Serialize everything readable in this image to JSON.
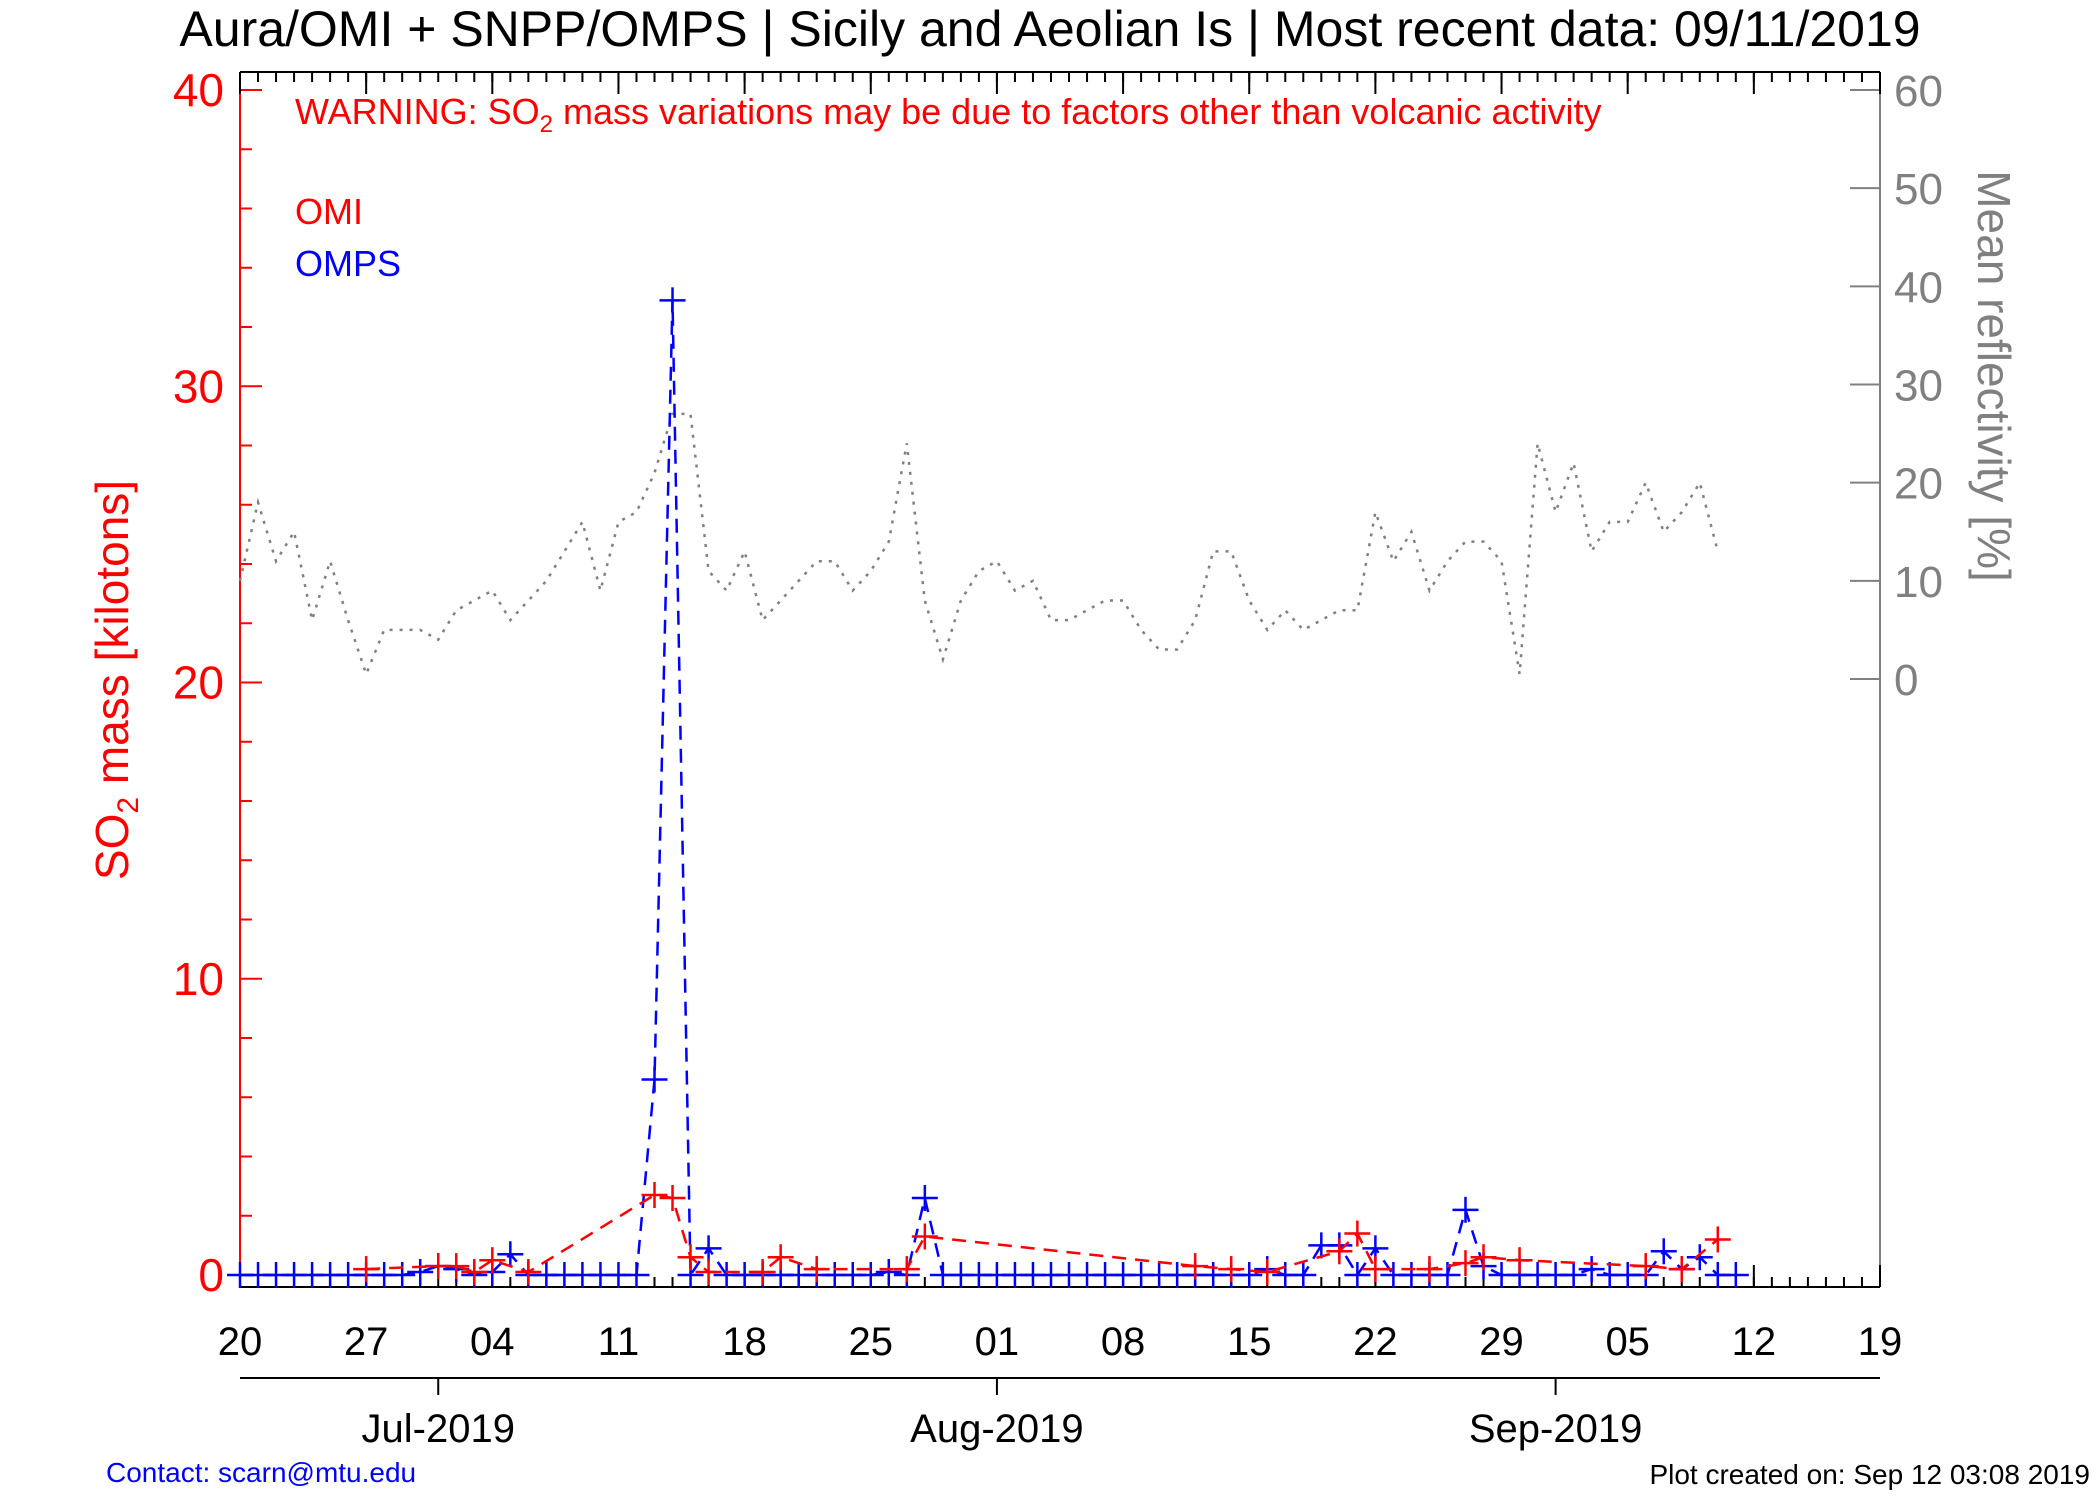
{
  "title": "Aura/OMI + SNPP/OMPS | Sicily and Aeolian Is | Most recent data: 09/11/2019",
  "warning": {
    "prefix": "WARNING: SO",
    "subscript": "2",
    "suffix": " mass variations may be due to factors other than volcanic activity"
  },
  "footer": {
    "contact": "Contact: scarn@mtu.edu",
    "created": "Plot created on: Sep 12 03:08 2019"
  },
  "colors": {
    "omi": "#ff0000",
    "omps": "#0000ff",
    "reflectivity": "#808080",
    "axis": "#000000"
  },
  "chart_data": {
    "type": "line",
    "xlim": [
      "2019-06-20",
      "2019-09-19"
    ],
    "x_tick_labels": [
      "20",
      "27",
      "04",
      "11",
      "18",
      "25",
      "01",
      "08",
      "15",
      "22",
      "29",
      "05",
      "12",
      "19"
    ],
    "x_tick_dates": [
      "2019-06-20",
      "2019-06-27",
      "2019-07-04",
      "2019-07-11",
      "2019-07-18",
      "2019-07-25",
      "2019-08-01",
      "2019-08-08",
      "2019-08-15",
      "2019-08-22",
      "2019-08-29",
      "2019-09-05",
      "2019-09-12",
      "2019-09-19"
    ],
    "month_labels": [
      {
        "label": "Jul-2019",
        "date": "2019-07-01"
      },
      {
        "label": "Aug-2019",
        "date": "2019-08-01"
      },
      {
        "label": "Sep-2019",
        "date": "2019-09-01"
      }
    ],
    "ylabel": {
      "prefix": "SO",
      "subscript": "2",
      "suffix": " mass [kilotons]"
    },
    "ylim": [
      0,
      40
    ],
    "y_ticks": [
      "0",
      "10",
      "20",
      "30",
      "40"
    ],
    "y2label": "Mean reflectivity [%]",
    "y2lim": [
      0,
      60
    ],
    "y2_ticks": [
      "0",
      "10",
      "20",
      "30",
      "40",
      "50",
      "60"
    ],
    "series": [
      {
        "name": "OMI",
        "style": "dashed",
        "marker": "plus",
        "points": [
          [
            "2019-06-27",
            0.2
          ],
          [
            "2019-07-01",
            0.3
          ],
          [
            "2019-07-02",
            0.3
          ],
          [
            "2019-07-03",
            0.1
          ],
          [
            "2019-07-04",
            0.5
          ],
          [
            "2019-07-06",
            0.1
          ],
          [
            "2019-07-13",
            2.7
          ],
          [
            "2019-07-14",
            2.6
          ],
          [
            "2019-07-15",
            0.6
          ],
          [
            "2019-07-16",
            0.1
          ],
          [
            "2019-07-19",
            0.1
          ],
          [
            "2019-07-20",
            0.6
          ],
          [
            "2019-07-22",
            0.2
          ],
          [
            "2019-07-27",
            0.2
          ],
          [
            "2019-07-28",
            1.3
          ],
          [
            "2019-08-12",
            0.3
          ],
          [
            "2019-08-14",
            0.2
          ],
          [
            "2019-08-16",
            0.1
          ],
          [
            "2019-08-20",
            0.8
          ],
          [
            "2019-08-21",
            1.4
          ],
          [
            "2019-08-22",
            0.2
          ],
          [
            "2019-08-25",
            0.2
          ],
          [
            "2019-08-27",
            0.4
          ],
          [
            "2019-08-28",
            0.6
          ],
          [
            "2019-08-30",
            0.5
          ],
          [
            "2019-09-06",
            0.3
          ],
          [
            "2019-09-08",
            0.2
          ],
          [
            "2019-09-10",
            1.2
          ]
        ]
      },
      {
        "name": "OMPS",
        "style": "dashed",
        "marker": "plus",
        "points": [
          [
            "2019-06-20",
            0.0
          ],
          [
            "2019-06-21",
            0.0
          ],
          [
            "2019-06-22",
            0.0
          ],
          [
            "2019-06-23",
            0.0
          ],
          [
            "2019-06-24",
            0.0
          ],
          [
            "2019-06-25",
            0.0
          ],
          [
            "2019-06-26",
            0.0
          ],
          [
            "2019-06-27",
            0.0
          ],
          [
            "2019-06-28",
            0.0
          ],
          [
            "2019-06-29",
            0.0
          ],
          [
            "2019-06-30",
            0.1
          ],
          [
            "2019-07-01",
            0.3
          ],
          [
            "2019-07-02",
            0.2
          ],
          [
            "2019-07-03",
            0.0
          ],
          [
            "2019-07-04",
            0.1
          ],
          [
            "2019-07-05",
            0.7
          ],
          [
            "2019-07-06",
            0.0
          ],
          [
            "2019-07-07",
            0.0
          ],
          [
            "2019-07-08",
            0.0
          ],
          [
            "2019-07-09",
            0.0
          ],
          [
            "2019-07-10",
            0.0
          ],
          [
            "2019-07-11",
            0.0
          ],
          [
            "2019-07-12",
            0.0
          ],
          [
            "2019-07-13",
            6.6
          ],
          [
            "2019-07-14",
            32.9
          ],
          [
            "2019-07-15",
            0.0
          ],
          [
            "2019-07-16",
            0.9
          ],
          [
            "2019-07-17",
            0.0
          ],
          [
            "2019-07-18",
            0.0
          ],
          [
            "2019-07-19",
            0.0
          ],
          [
            "2019-07-20",
            0.0
          ],
          [
            "2019-07-21",
            0.0
          ],
          [
            "2019-07-22",
            0.0
          ],
          [
            "2019-07-23",
            0.0
          ],
          [
            "2019-07-24",
            0.0
          ],
          [
            "2019-07-25",
            0.0
          ],
          [
            "2019-07-26",
            0.1
          ],
          [
            "2019-07-27",
            0.0
          ],
          [
            "2019-07-28",
            2.6
          ],
          [
            "2019-07-29",
            0.0
          ],
          [
            "2019-07-30",
            0.0
          ],
          [
            "2019-07-31",
            0.0
          ],
          [
            "2019-08-01",
            0.0
          ],
          [
            "2019-08-02",
            0.0
          ],
          [
            "2019-08-03",
            0.0
          ],
          [
            "2019-08-04",
            0.0
          ],
          [
            "2019-08-05",
            0.0
          ],
          [
            "2019-08-06",
            0.0
          ],
          [
            "2019-08-07",
            0.0
          ],
          [
            "2019-08-08",
            0.0
          ],
          [
            "2019-08-09",
            0.0
          ],
          [
            "2019-08-10",
            0.0
          ],
          [
            "2019-08-11",
            0.0
          ],
          [
            "2019-08-12",
            0.0
          ],
          [
            "2019-08-13",
            0.0
          ],
          [
            "2019-08-14",
            0.0
          ],
          [
            "2019-08-15",
            0.0
          ],
          [
            "2019-08-16",
            0.2
          ],
          [
            "2019-08-17",
            0.0
          ],
          [
            "2019-08-18",
            0.0
          ],
          [
            "2019-08-19",
            1.0
          ],
          [
            "2019-08-20",
            1.0
          ],
          [
            "2019-08-21",
            0.0
          ],
          [
            "2019-08-22",
            0.9
          ],
          [
            "2019-08-23",
            0.0
          ],
          [
            "2019-08-24",
            0.0
          ],
          [
            "2019-08-25",
            0.0
          ],
          [
            "2019-08-26",
            0.0
          ],
          [
            "2019-08-27",
            2.2
          ],
          [
            "2019-08-28",
            0.3
          ],
          [
            "2019-08-29",
            0.0
          ],
          [
            "2019-08-30",
            0.0
          ],
          [
            "2019-08-31",
            0.0
          ],
          [
            "2019-09-01",
            0.0
          ],
          [
            "2019-09-02",
            0.0
          ],
          [
            "2019-09-03",
            0.2
          ],
          [
            "2019-09-04",
            0.0
          ],
          [
            "2019-09-05",
            0.0
          ],
          [
            "2019-09-06",
            0.0
          ],
          [
            "2019-09-07",
            0.8
          ],
          [
            "2019-09-08",
            0.2
          ],
          [
            "2019-09-09",
            0.6
          ],
          [
            "2019-09-10",
            0.0
          ],
          [
            "2019-09-11",
            0.0
          ]
        ]
      },
      {
        "name": "Mean reflectivity",
        "style": "dotted",
        "axis": "right",
        "points": [
          [
            "2019-06-20",
            10
          ],
          [
            "2019-06-21",
            18
          ],
          [
            "2019-06-22",
            12
          ],
          [
            "2019-06-23",
            15
          ],
          [
            "2019-06-24",
            6
          ],
          [
            "2019-06-25",
            12
          ],
          [
            "2019-06-26",
            6
          ],
          [
            "2019-06-27",
            0.5
          ],
          [
            "2019-06-28",
            5
          ],
          [
            "2019-06-29",
            5
          ],
          [
            "2019-06-30",
            5
          ],
          [
            "2019-07-01",
            4
          ],
          [
            "2019-07-02",
            7
          ],
          [
            "2019-07-03",
            8
          ],
          [
            "2019-07-04",
            9
          ],
          [
            "2019-07-05",
            6
          ],
          [
            "2019-07-06",
            8
          ],
          [
            "2019-07-07",
            10
          ],
          [
            "2019-07-08",
            13
          ],
          [
            "2019-07-09",
            16
          ],
          [
            "2019-07-10",
            9
          ],
          [
            "2019-07-11",
            16
          ],
          [
            "2019-07-12",
            17
          ],
          [
            "2019-07-13",
            21
          ],
          [
            "2019-07-14",
            27
          ],
          [
            "2019-07-15",
            27
          ],
          [
            "2019-07-16",
            11
          ],
          [
            "2019-07-17",
            9
          ],
          [
            "2019-07-18",
            13
          ],
          [
            "2019-07-19",
            6
          ],
          [
            "2019-07-20",
            8
          ],
          [
            "2019-07-21",
            10
          ],
          [
            "2019-07-22",
            12
          ],
          [
            "2019-07-23",
            12
          ],
          [
            "2019-07-24",
            9
          ],
          [
            "2019-07-25",
            11
          ],
          [
            "2019-07-26",
            14
          ],
          [
            "2019-07-27",
            24
          ],
          [
            "2019-07-28",
            8
          ],
          [
            "2019-07-29",
            2
          ],
          [
            "2019-07-30",
            8
          ],
          [
            "2019-07-31",
            11
          ],
          [
            "2019-08-01",
            12
          ],
          [
            "2019-08-02",
            9
          ],
          [
            "2019-08-03",
            10
          ],
          [
            "2019-08-04",
            6
          ],
          [
            "2019-08-05",
            6
          ],
          [
            "2019-08-06",
            7
          ],
          [
            "2019-08-07",
            8
          ],
          [
            "2019-08-08",
            8
          ],
          [
            "2019-08-09",
            5
          ],
          [
            "2019-08-10",
            3
          ],
          [
            "2019-08-11",
            3
          ],
          [
            "2019-08-12",
            6
          ],
          [
            "2019-08-13",
            13
          ],
          [
            "2019-08-14",
            13
          ],
          [
            "2019-08-15",
            8
          ],
          [
            "2019-08-16",
            5
          ],
          [
            "2019-08-17",
            7
          ],
          [
            "2019-08-18",
            5
          ],
          [
            "2019-08-19",
            6
          ],
          [
            "2019-08-20",
            7
          ],
          [
            "2019-08-21",
            7
          ],
          [
            "2019-08-22",
            17
          ],
          [
            "2019-08-23",
            12
          ],
          [
            "2019-08-24",
            15
          ],
          [
            "2019-08-25",
            9
          ],
          [
            "2019-08-26",
            12
          ],
          [
            "2019-08-27",
            14
          ],
          [
            "2019-08-28",
            14
          ],
          [
            "2019-08-29",
            12
          ],
          [
            "2019-08-30",
            0.5
          ],
          [
            "2019-08-31",
            24
          ],
          [
            "2019-09-01",
            17
          ],
          [
            "2019-09-02",
            22
          ],
          [
            "2019-09-03",
            13
          ],
          [
            "2019-09-04",
            16
          ],
          [
            "2019-09-05",
            16
          ],
          [
            "2019-09-06",
            20
          ],
          [
            "2019-09-07",
            15
          ],
          [
            "2019-09-08",
            17
          ],
          [
            "2019-09-09",
            20
          ],
          [
            "2019-09-10",
            13
          ]
        ]
      }
    ]
  }
}
